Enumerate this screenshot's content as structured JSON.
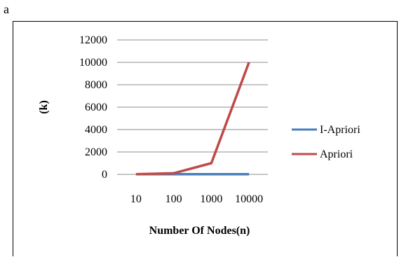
{
  "panel_label": "a",
  "chart_data": {
    "type": "line",
    "title": "",
    "xlabel": "Number Of Nodes(n)",
    "ylabel": "(k)",
    "categories": [
      "10",
      "100",
      "1000",
      "10000"
    ],
    "ylim": [
      0,
      12000
    ],
    "yticks": [
      0,
      2000,
      4000,
      6000,
      8000,
      10000,
      12000
    ],
    "grid": true,
    "legend_position": "right",
    "series": [
      {
        "name": "I-Apriori",
        "color": "#4a7ebb",
        "values": [
          10,
          10,
          10,
          10
        ]
      },
      {
        "name": "Apriori",
        "color": "#be4b48",
        "values": [
          10,
          100,
          1000,
          10000
        ]
      }
    ]
  }
}
